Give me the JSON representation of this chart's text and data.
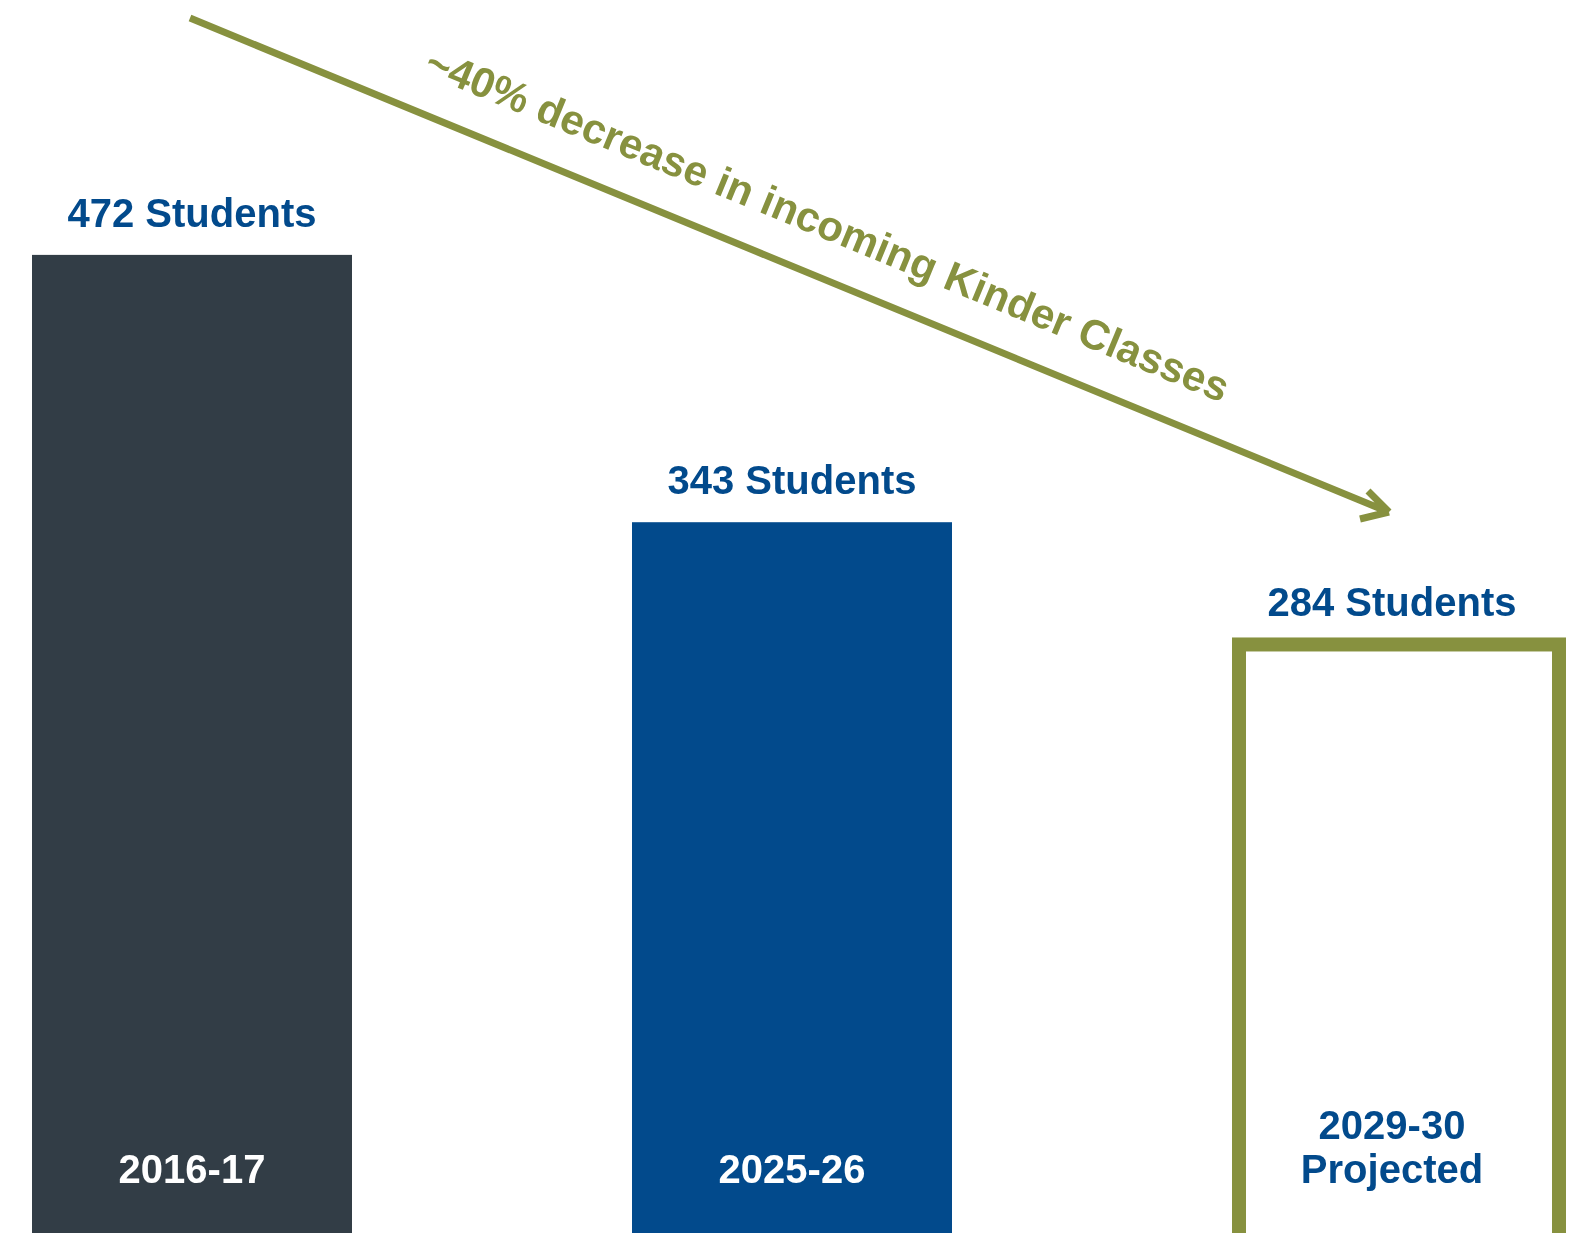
{
  "chart_data": {
    "type": "bar",
    "categories": [
      "2016-17",
      "2025-26",
      "2029-30\nProjected"
    ],
    "values": [
      472,
      343,
      284
    ],
    "colors": [
      "#323d46",
      "#024a8c",
      "#87913f"
    ],
    "value_labels": [
      "472 Students",
      "343 Students",
      "284 Students"
    ],
    "ylim": [
      0,
      595
    ],
    "annotations": [
      "~40% decrease in incoming Kinder Classes"
    ]
  }
}
